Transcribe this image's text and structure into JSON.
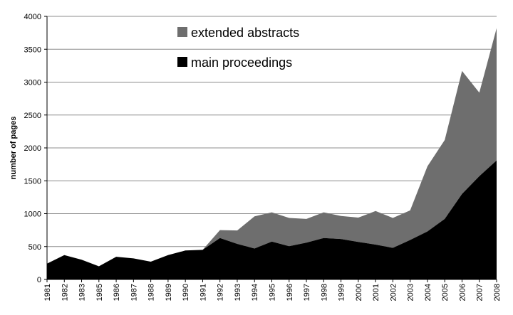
{
  "chart_data": {
    "type": "area",
    "stacked": true,
    "title": "",
    "xlabel": "",
    "ylabel": "number of pages",
    "ylim": [
      0,
      4000
    ],
    "yticks": [
      0,
      500,
      1000,
      1500,
      2000,
      2500,
      3000,
      3500,
      4000
    ],
    "grid": true,
    "legend_position": "top-center",
    "categories": [
      "1981",
      "1982",
      "1983",
      "1985",
      "1986",
      "1987",
      "1988",
      "1989",
      "1990",
      "1991",
      "1992",
      "1993",
      "1994",
      "1995",
      "1996",
      "1997",
      "1998",
      "1999",
      "2000",
      "2001",
      "2002",
      "2003",
      "2004",
      "2005",
      "2006",
      "2007",
      "2008"
    ],
    "series": [
      {
        "name": "main proceedings",
        "color": "#000000",
        "values": [
          240,
          370,
          300,
          200,
          345,
          320,
          270,
          370,
          440,
          450,
          630,
          540,
          470,
          575,
          505,
          560,
          630,
          615,
          570,
          530,
          480,
          600,
          730,
          920,
          1300,
          1570,
          1810
        ]
      },
      {
        "name": "extended abstracts",
        "color": "#6e6e6e",
        "values": [
          0,
          0,
          0,
          0,
          0,
          0,
          0,
          0,
          0,
          0,
          120,
          205,
          490,
          445,
          430,
          360,
          390,
          350,
          370,
          510,
          455,
          450,
          990,
          1200,
          1870,
          1270,
          2010
        ]
      }
    ]
  }
}
